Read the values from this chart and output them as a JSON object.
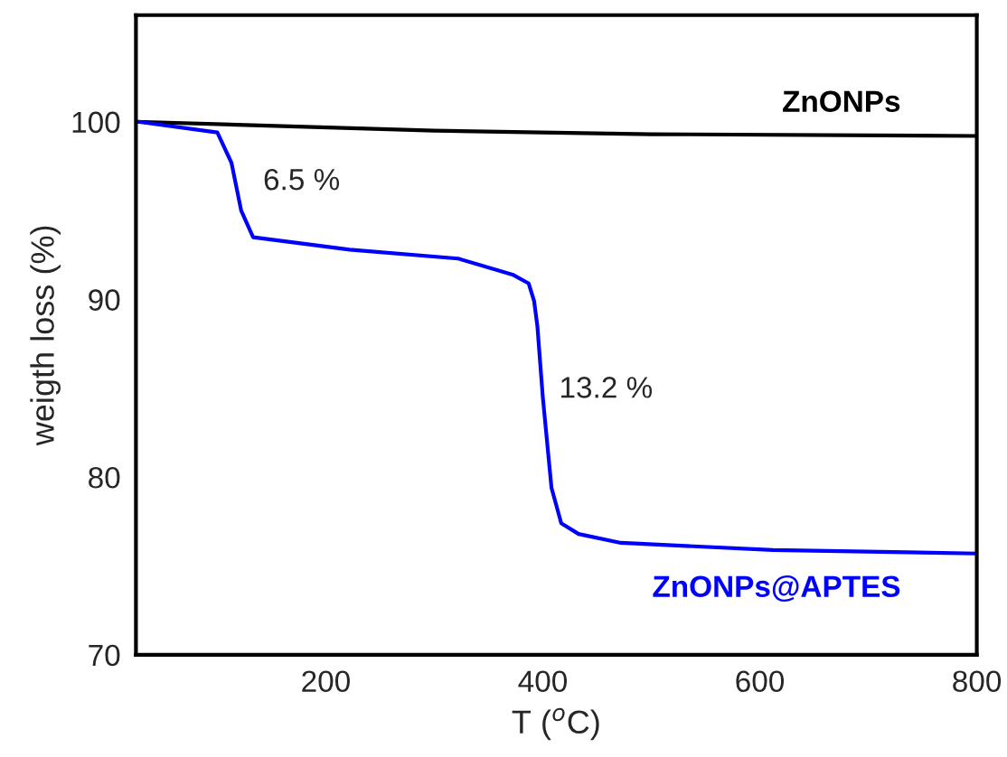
{
  "chart_data": {
    "type": "line",
    "xlabel": "T ($^{o}$C)",
    "ylabel": "weigth loss (%)",
    "xlim": [
      25,
      800
    ],
    "ylim": [
      70,
      106
    ],
    "xticks": [
      200,
      400,
      600,
      800
    ],
    "yticks": [
      70,
      80,
      90,
      100
    ],
    "grid": false,
    "legend": false,
    "marker": "none",
    "line_style": "solid",
    "series": [
      {
        "name": "ZnONPs",
        "color": "#000000",
        "x": [
          25,
          300,
          500,
          800
        ],
        "values": [
          100,
          99.5,
          99.3,
          99.2
        ]
      },
      {
        "name": "ZnONPs@APTES",
        "color": "#0000ff",
        "x": [
          27,
          100,
          113,
          122,
          133,
          222,
          322,
          372,
          387,
          392,
          395,
          400,
          408,
          417,
          433,
          472,
          612,
          800
        ],
        "values": [
          100,
          99.4,
          97.7,
          95.0,
          93.5,
          92.8,
          92.3,
          91.4,
          90.9,
          89.9,
          88.5,
          84.5,
          79.4,
          77.4,
          76.8,
          76.3,
          75.9,
          75.7
        ]
      }
    ],
    "annotations": [
      "6.5 %",
      "13.2 %"
    ]
  }
}
